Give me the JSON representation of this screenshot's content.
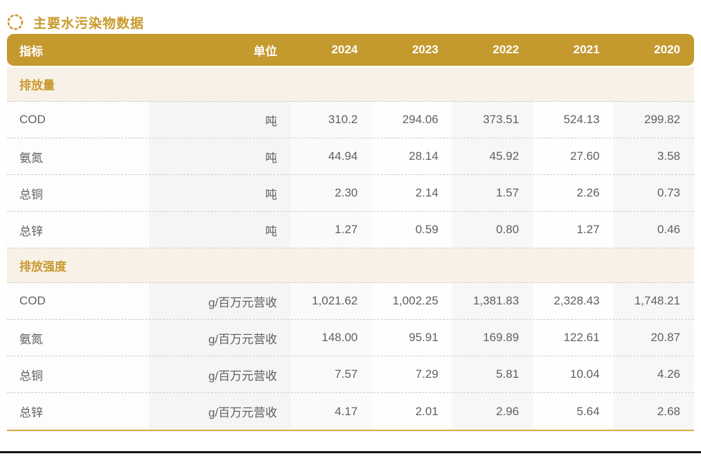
{
  "title": "主要水污染物数据",
  "title_icon": "dashed-circle-icon",
  "colors": {
    "title_text": "#C9992B",
    "header_bg": "#C49A2F",
    "header_text": "#FFFFFF",
    "section_bg": "#F8F1E7",
    "section_text": "#C8992F",
    "body_text": "#606060",
    "row_divider": "#C9C9C9",
    "table_bottom_border": "#DCA844"
  },
  "chart_data": {
    "type": "table",
    "title": "主要水污染物数据",
    "columns": [
      "指标",
      "单位",
      "2024",
      "2023",
      "2022",
      "2021",
      "2020"
    ],
    "sections": [
      {
        "label": "排放量",
        "rows": [
          [
            "COD",
            "吨",
            "310.2",
            "294.06",
            "373.51",
            "524.13",
            "299.82"
          ],
          [
            "氨氮",
            "吨",
            "44.94",
            "28.14",
            "45.92",
            "27.60",
            "3.58"
          ],
          [
            "总铜",
            "吨",
            "2.30",
            "2.14",
            "1.57",
            "2.26",
            "0.73"
          ],
          [
            "总锌",
            "吨",
            "1.27",
            "0.59",
            "0.80",
            "1.27",
            "0.46"
          ]
        ]
      },
      {
        "label": "排放强度",
        "rows": [
          [
            "COD",
            "g/百万元营收",
            "1,021.62",
            "1,002.25",
            "1,381.83",
            "2,328.43",
            "1,748.21"
          ],
          [
            "氨氮",
            "g/百万元营收",
            "148.00",
            "95.91",
            "169.89",
            "122.61",
            "20.87"
          ],
          [
            "总铜",
            "g/百万元营收",
            "7.57",
            "7.29",
            "5.81",
            "10.04",
            "4.26"
          ],
          [
            "总锌",
            "g/百万元营收",
            "4.17",
            "2.01",
            "2.96",
            "5.64",
            "2.68"
          ]
        ]
      }
    ]
  }
}
